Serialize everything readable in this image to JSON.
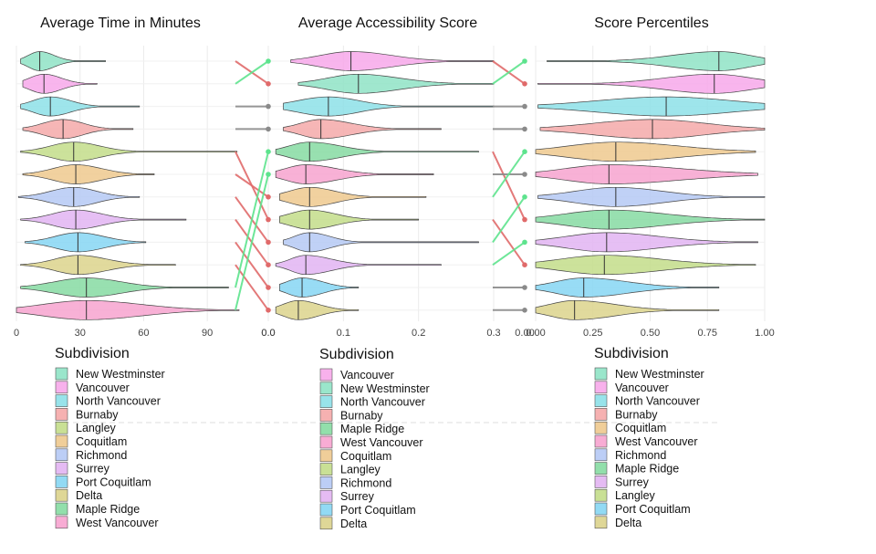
{
  "palette": {
    "New Westminster": "#8fe3c5",
    "Vancouver": "#f7a8ea",
    "North Vancouver": "#8de0e8",
    "Burnaby": "#f5a9a9",
    "Langley": "#c3dd8a",
    "Coquitlam": "#eec98e",
    "Richmond": "#b5c9f5",
    "Surrey": "#e2b4f2",
    "Port Coquitlam": "#86d6f3",
    "Delta": "#dcd38c",
    "Maple Ridge": "#86dba2",
    "West Vancouver": "#f7a3cf",
    "up_line": "#5de38d",
    "down_line": "#e06a6a",
    "flat_line": "#8a8a8a"
  },
  "chart_data": [
    {
      "type": "violin",
      "title": "Average Time in Minutes",
      "xlim": [
        0,
        105
      ],
      "ticks": [
        0,
        30,
        60,
        90
      ],
      "tick_labels": [
        "0",
        "30",
        "60",
        "90"
      ],
      "legend_title": "Subdivision",
      "groups": [
        {
          "name": "New Westminster",
          "median": 11,
          "q1": 7,
          "q3": 16,
          "min": 2,
          "max": 42
        },
        {
          "name": "Vancouver",
          "median": 13,
          "q1": 8,
          "q3": 19,
          "min": 3,
          "max": 38
        },
        {
          "name": "North Vancouver",
          "median": 16,
          "q1": 10,
          "q3": 23,
          "min": 2,
          "max": 58
        },
        {
          "name": "Burnaby",
          "median": 22,
          "q1": 15,
          "q3": 29,
          "min": 3,
          "max": 55
        },
        {
          "name": "Langley",
          "median": 27,
          "q1": 19,
          "q3": 36,
          "min": 2,
          "max": 104
        },
        {
          "name": "Coquitlam",
          "median": 28,
          "q1": 20,
          "q3": 37,
          "min": 3,
          "max": 65
        },
        {
          "name": "Richmond",
          "median": 27,
          "q1": 19,
          "q3": 35,
          "min": 1,
          "max": 58
        },
        {
          "name": "Surrey",
          "median": 28,
          "q1": 20,
          "q3": 37,
          "min": 2,
          "max": 80
        },
        {
          "name": "Port Coquitlam",
          "median": 29,
          "q1": 21,
          "q3": 38,
          "min": 4,
          "max": 61
        },
        {
          "name": "Delta",
          "median": 29,
          "q1": 21,
          "q3": 39,
          "min": 2,
          "max": 75
        },
        {
          "name": "Maple Ridge",
          "median": 33,
          "q1": 22,
          "q3": 45,
          "min": 2,
          "max": 100
        },
        {
          "name": "West Vancouver",
          "median": 33,
          "q1": 18,
          "q3": 52,
          "min": 0,
          "max": 105
        }
      ]
    },
    {
      "type": "violin",
      "title": "Average Accessibility Score",
      "xlim": [
        0,
        0.3
      ],
      "ticks": [
        0,
        0.1,
        0.2,
        0.3
      ],
      "tick_labels": [
        "0.0",
        "0.1",
        "0.2",
        "0.3"
      ],
      "legend_title": "Subdivision",
      "groups": [
        {
          "name": "Vancouver",
          "median": 0.11,
          "q1": 0.08,
          "q3": 0.15,
          "min": 0.03,
          "max": 0.3
        },
        {
          "name": "New Westminster",
          "median": 0.12,
          "q1": 0.09,
          "q3": 0.16,
          "min": 0.04,
          "max": 0.3
        },
        {
          "name": "North Vancouver",
          "median": 0.08,
          "q1": 0.05,
          "q3": 0.11,
          "min": 0.02,
          "max": 0.3
        },
        {
          "name": "Burnaby",
          "median": 0.07,
          "q1": 0.05,
          "q3": 0.1,
          "min": 0.02,
          "max": 0.23
        },
        {
          "name": "Maple Ridge",
          "median": 0.055,
          "q1": 0.035,
          "q3": 0.085,
          "min": 0.01,
          "max": 0.28
        },
        {
          "name": "West Vancouver",
          "median": 0.05,
          "q1": 0.03,
          "q3": 0.08,
          "min": 0.01,
          "max": 0.22
        },
        {
          "name": "Coquitlam",
          "median": 0.055,
          "q1": 0.035,
          "q3": 0.08,
          "min": 0.015,
          "max": 0.21
        },
        {
          "name": "Langley",
          "median": 0.055,
          "q1": 0.035,
          "q3": 0.08,
          "min": 0.015,
          "max": 0.2
        },
        {
          "name": "Richmond",
          "median": 0.055,
          "q1": 0.04,
          "q3": 0.075,
          "min": 0.02,
          "max": 0.28
        },
        {
          "name": "Surrey",
          "median": 0.05,
          "q1": 0.035,
          "q3": 0.075,
          "min": 0.01,
          "max": 0.23
        },
        {
          "name": "Port Coquitlam",
          "median": 0.045,
          "q1": 0.03,
          "q3": 0.065,
          "min": 0.015,
          "max": 0.12
        },
        {
          "name": "Delta",
          "median": 0.04,
          "q1": 0.025,
          "q3": 0.06,
          "min": 0.01,
          "max": 0.12
        }
      ]
    },
    {
      "type": "violin",
      "title": "Score Percentiles",
      "xlim": [
        0,
        1
      ],
      "ticks": [
        0,
        0.25,
        0.5,
        0.75,
        1
      ],
      "tick_labels": [
        "0.00",
        "0.25",
        "0.50",
        "0.75",
        "1.00"
      ],
      "legend_title": "Subdivision",
      "groups": [
        {
          "name": "New Westminster",
          "median": 0.8,
          "q1": 0.65,
          "q3": 0.9,
          "min": 0.05,
          "max": 1
        },
        {
          "name": "Vancouver",
          "median": 0.78,
          "q1": 0.62,
          "q3": 0.9,
          "min": 0.01,
          "max": 1
        },
        {
          "name": "North Vancouver",
          "median": 0.57,
          "q1": 0.35,
          "q3": 0.78,
          "min": 0.01,
          "max": 1
        },
        {
          "name": "Burnaby",
          "median": 0.51,
          "q1": 0.32,
          "q3": 0.68,
          "min": 0.02,
          "max": 1
        },
        {
          "name": "Coquitlam",
          "median": 0.35,
          "q1": 0.2,
          "q3": 0.55,
          "min": 0,
          "max": 0.96
        },
        {
          "name": "West Vancouver",
          "median": 0.32,
          "q1": 0.18,
          "q3": 0.55,
          "min": 0,
          "max": 0.97
        },
        {
          "name": "Richmond",
          "median": 0.35,
          "q1": 0.22,
          "q3": 0.5,
          "min": 0.01,
          "max": 1
        },
        {
          "name": "Maple Ridge",
          "median": 0.32,
          "q1": 0.18,
          "q3": 0.5,
          "min": 0,
          "max": 1
        },
        {
          "name": "Surrey",
          "median": 0.31,
          "q1": 0.18,
          "q3": 0.48,
          "min": 0,
          "max": 0.97
        },
        {
          "name": "Langley",
          "median": 0.3,
          "q1": 0.16,
          "q3": 0.48,
          "min": 0,
          "max": 0.96
        },
        {
          "name": "Port Coquitlam",
          "median": 0.21,
          "q1": 0.12,
          "q3": 0.35,
          "min": 0,
          "max": 0.8
        },
        {
          "name": "Delta",
          "median": 0.17,
          "q1": 0.09,
          "q3": 0.3,
          "min": 0,
          "max": 0.8
        }
      ]
    }
  ],
  "rank_changes": [
    {
      "between": [
        "Average Time in Minutes",
        "Average Accessibility Score"
      ],
      "tick_label": "0.0",
      "links": [
        {
          "name": "New Westminster",
          "from_rank": 1,
          "to_rank": 2
        },
        {
          "name": "Vancouver",
          "from_rank": 2,
          "to_rank": 1
        },
        {
          "name": "North Vancouver",
          "from_rank": 3,
          "to_rank": 3
        },
        {
          "name": "Burnaby",
          "from_rank": 4,
          "to_rank": 4
        },
        {
          "name": "Langley",
          "from_rank": 5,
          "to_rank": 8
        },
        {
          "name": "Coquitlam",
          "from_rank": 6,
          "to_rank": 7
        },
        {
          "name": "Richmond",
          "from_rank": 7,
          "to_rank": 9
        },
        {
          "name": "Surrey",
          "from_rank": 8,
          "to_rank": 10
        },
        {
          "name": "Port Coquitlam",
          "from_rank": 9,
          "to_rank": 11
        },
        {
          "name": "Delta",
          "from_rank": 10,
          "to_rank": 12
        },
        {
          "name": "Maple Ridge",
          "from_rank": 11,
          "to_rank": 5
        },
        {
          "name": "West Vancouver",
          "from_rank": 12,
          "to_rank": 6
        }
      ]
    },
    {
      "between": [
        "Average Accessibility Score",
        "Score Percentiles"
      ],
      "tick_label": "0.00",
      "links": [
        {
          "name": "Vancouver",
          "from_rank": 1,
          "to_rank": 2
        },
        {
          "name": "New Westminster",
          "from_rank": 2,
          "to_rank": 1
        },
        {
          "name": "North Vancouver",
          "from_rank": 3,
          "to_rank": 3
        },
        {
          "name": "Burnaby",
          "from_rank": 4,
          "to_rank": 4
        },
        {
          "name": "Maple Ridge",
          "from_rank": 5,
          "to_rank": 8
        },
        {
          "name": "West Vancouver",
          "from_rank": 6,
          "to_rank": 6
        },
        {
          "name": "Coquitlam",
          "from_rank": 7,
          "to_rank": 5
        },
        {
          "name": "Langley",
          "from_rank": 8,
          "to_rank": 10
        },
        {
          "name": "Richmond",
          "from_rank": 9,
          "to_rank": 7
        },
        {
          "name": "Surrey",
          "from_rank": 10,
          "to_rank": 9
        },
        {
          "name": "Port Coquitlam",
          "from_rank": 11,
          "to_rank": 11
        },
        {
          "name": "Delta",
          "from_rank": 12,
          "to_rank": 12
        }
      ]
    }
  ]
}
